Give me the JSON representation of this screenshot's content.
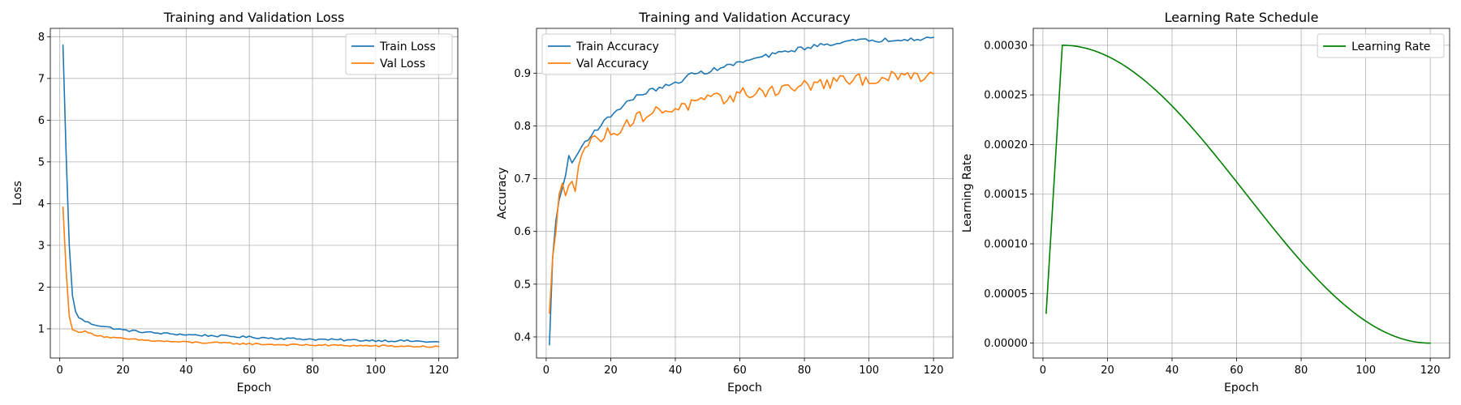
{
  "chart_data": [
    {
      "type": "line",
      "title": "Training and Validation Loss",
      "xlabel": "Epoch",
      "ylabel": "Loss",
      "xlim": [
        -3,
        126
      ],
      "ylim": [
        0.3,
        8.2
      ],
      "xticks": [
        0,
        20,
        40,
        60,
        80,
        100,
        120
      ],
      "xtick_labels": [
        "0",
        "20",
        "40",
        "60",
        "80",
        "100",
        "120"
      ],
      "yticks": [
        1,
        2,
        3,
        4,
        5,
        6,
        7,
        8
      ],
      "ytick_labels": [
        "1",
        "2",
        "3",
        "4",
        "5",
        "6",
        "7",
        "8"
      ],
      "grid": true,
      "legend": "top-right",
      "series": [
        {
          "name": "Train Loss",
          "color": "#1f77b4",
          "points": [
            [
              1,
              7.8
            ],
            [
              2,
              5.2
            ],
            [
              3,
              3.0
            ],
            [
              4,
              1.8
            ],
            [
              5,
              1.4
            ],
            [
              6,
              1.28
            ],
            [
              7,
              1.22
            ],
            [
              8,
              1.18
            ],
            [
              10,
              1.12
            ],
            [
              15,
              1.04
            ],
            [
              20,
              0.97
            ],
            [
              30,
              0.9
            ],
            [
              40,
              0.86
            ],
            [
              50,
              0.83
            ],
            [
              60,
              0.8
            ],
            [
              70,
              0.77
            ],
            [
              80,
              0.75
            ],
            [
              90,
              0.73
            ],
            [
              100,
              0.72
            ],
            [
              110,
              0.71
            ],
            [
              120,
              0.68
            ]
          ],
          "noise": 0.025
        },
        {
          "name": "Val Loss",
          "color": "#ff7f0e",
          "points": [
            [
              1,
              3.92
            ],
            [
              2,
              2.4
            ],
            [
              3,
              1.3
            ],
            [
              4,
              0.98
            ],
            [
              5,
              0.94
            ],
            [
              8,
              0.93
            ],
            [
              10,
              0.88
            ],
            [
              15,
              0.8
            ],
            [
              20,
              0.76
            ],
            [
              30,
              0.71
            ],
            [
              40,
              0.68
            ],
            [
              50,
              0.66
            ],
            [
              60,
              0.64
            ],
            [
              70,
              0.62
            ],
            [
              80,
              0.61
            ],
            [
              90,
              0.6
            ],
            [
              100,
              0.59
            ],
            [
              110,
              0.58
            ],
            [
              120,
              0.57
            ]
          ],
          "noise": 0.022
        }
      ]
    },
    {
      "type": "line",
      "title": "Training and Validation Accuracy",
      "xlabel": "Epoch",
      "ylabel": "Accuracy",
      "xlim": [
        -3,
        126
      ],
      "ylim": [
        0.36,
        0.985
      ],
      "xticks": [
        0,
        20,
        40,
        60,
        80,
        100,
        120
      ],
      "xtick_labels": [
        "0",
        "20",
        "40",
        "60",
        "80",
        "100",
        "120"
      ],
      "yticks": [
        0.4,
        0.5,
        0.6,
        0.7,
        0.8,
        0.9
      ],
      "ytick_labels": [
        "0.4",
        "0.5",
        "0.6",
        "0.7",
        "0.8",
        "0.9"
      ],
      "grid": true,
      "legend": "top-left",
      "series": [
        {
          "name": "Train Accuracy",
          "color": "#1f77b4",
          "points": [
            [
              1,
              0.385
            ],
            [
              2,
              0.55
            ],
            [
              3,
              0.62
            ],
            [
              4,
              0.66
            ],
            [
              5,
              0.68
            ],
            [
              7,
              0.74
            ],
            [
              8,
              0.73
            ],
            [
              10,
              0.75
            ],
            [
              12,
              0.77
            ],
            [
              15,
              0.79
            ],
            [
              20,
              0.82
            ],
            [
              25,
              0.845
            ],
            [
              30,
              0.862
            ],
            [
              35,
              0.872
            ],
            [
              40,
              0.88
            ],
            [
              45,
              0.898
            ],
            [
              50,
              0.903
            ],
            [
              55,
              0.912
            ],
            [
              60,
              0.92
            ],
            [
              65,
              0.928
            ],
            [
              70,
              0.935
            ],
            [
              75,
              0.942
            ],
            [
              80,
              0.948
            ],
            [
              85,
              0.953
            ],
            [
              90,
              0.958
            ],
            [
              95,
              0.961
            ],
            [
              100,
              0.962
            ],
            [
              105,
              0.963
            ],
            [
              110,
              0.965
            ],
            [
              115,
              0.966
            ],
            [
              120,
              0.967
            ]
          ],
          "noise": 0.004
        },
        {
          "name": "Val Accuracy",
          "color": "#ff7f0e",
          "points": [
            [
              1,
              0.445
            ],
            [
              2,
              0.55
            ],
            [
              3,
              0.6
            ],
            [
              4,
              0.67
            ],
            [
              5,
              0.685
            ],
            [
              6,
              0.66
            ],
            [
              7,
              0.69
            ],
            [
              8,
              0.705
            ],
            [
              9,
              0.685
            ],
            [
              10,
              0.735
            ],
            [
              12,
              0.76
            ],
            [
              15,
              0.775
            ],
            [
              20,
              0.787
            ],
            [
              25,
              0.805
            ],
            [
              30,
              0.82
            ],
            [
              35,
              0.828
            ],
            [
              40,
              0.835
            ],
            [
              45,
              0.84
            ],
            [
              50,
              0.848
            ],
            [
              55,
              0.852
            ],
            [
              60,
              0.86
            ],
            [
              65,
              0.864
            ],
            [
              70,
              0.868
            ],
            [
              75,
              0.872
            ],
            [
              80,
              0.876
            ],
            [
              85,
              0.88
            ],
            [
              90,
              0.883
            ],
            [
              95,
              0.886
            ],
            [
              100,
              0.889
            ],
            [
              105,
              0.891
            ],
            [
              110,
              0.893
            ],
            [
              115,
              0.895
            ],
            [
              120,
              0.898
            ]
          ],
          "noise": 0.012
        }
      ]
    },
    {
      "type": "line",
      "title": "Learning Rate Schedule",
      "xlabel": "Epoch",
      "ylabel": "Learning Rate",
      "xlim": [
        -3,
        126
      ],
      "ylim": [
        -1.5e-05,
        0.000317
      ],
      "xticks": [
        0,
        20,
        40,
        60,
        80,
        100,
        120
      ],
      "xtick_labels": [
        "0",
        "20",
        "40",
        "60",
        "80",
        "100",
        "120"
      ],
      "yticks": [
        0,
        5e-05,
        0.0001,
        0.00015,
        0.0002,
        0.00025,
        0.0003
      ],
      "ytick_labels": [
        "0.00000",
        "0.00005",
        "0.00010",
        "0.00015",
        "0.00020",
        "0.00025",
        "0.00030"
      ],
      "grid": true,
      "legend": "top-right",
      "series": [
        {
          "name": "Learning Rate",
          "color": "#008000",
          "schedule": {
            "kind": "warmup-cosine",
            "start_epoch": 1,
            "start_value": 3e-05,
            "peak_epoch": 6,
            "peak_value": 0.0003,
            "end_epoch": 120,
            "end_value": 0
          },
          "noise": 0
        }
      ]
    }
  ]
}
